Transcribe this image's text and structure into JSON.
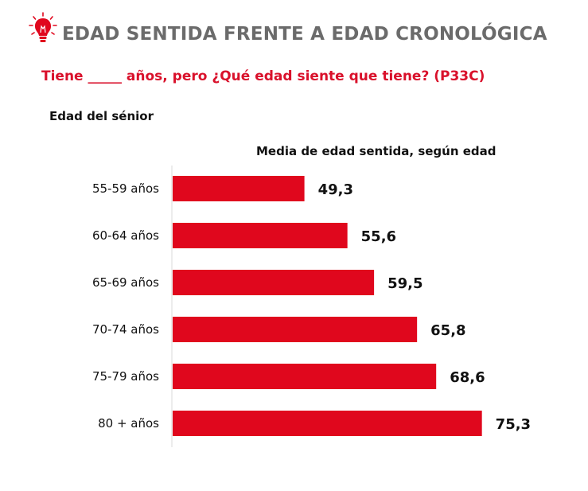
{
  "header": {
    "title": "EDAD SENTIDA FRENTE A EDAD CRONOLÓGICA",
    "subtitle": "Tiene _____ años, pero ¿Qué edad siente que tiene? (P33C)",
    "icon": "lightbulb-icon"
  },
  "colors": {
    "bar": "#e0071d",
    "title": "#6b6b6b",
    "subtitle": "#d9112b",
    "axis": "#d9d9d9"
  },
  "chart_data": {
    "type": "bar",
    "orientation": "horizontal",
    "title": "Media de edad sentida, según edad",
    "ylabel": "Edad del sénior",
    "xlabel": "",
    "categories": [
      "55-59 años",
      "60-64 años",
      "65-69 años",
      "70-74 años",
      "75-79 años",
      "80 + años"
    ],
    "values": [
      49.3,
      55.6,
      59.5,
      65.8,
      68.6,
      75.3
    ],
    "value_labels": [
      "49,3",
      "55,6",
      "59,5",
      "65,8",
      "68,6",
      "75,3"
    ],
    "xlim": [
      30,
      80
    ],
    "grid": false,
    "legend": "none"
  }
}
